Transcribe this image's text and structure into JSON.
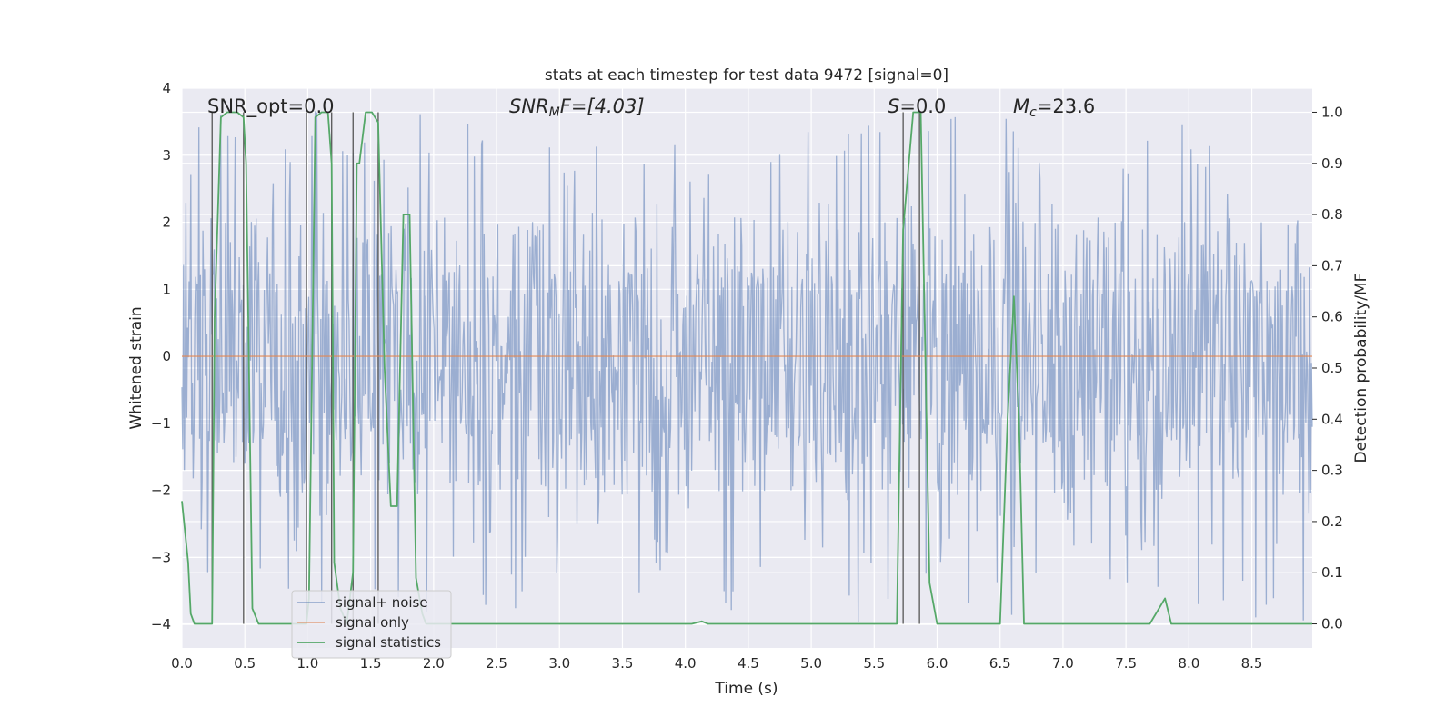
{
  "chart_data": {
    "type": "line",
    "title": "stats at each timestep for test data 9472 [signal=0]",
    "xlabel": "Time (s)",
    "ylabel_left": "Whitened strain",
    "ylabel_right": "Detection probability/MF",
    "xlim": [
      0.0,
      8.98
    ],
    "ylim_left": [
      -4.35,
      4.0
    ],
    "ylim_right": [
      -0.047,
      1.047
    ],
    "x_ticks": [
      "0.0",
      "0.5",
      "1.0",
      "1.5",
      "2.0",
      "2.5",
      "3.0",
      "3.5",
      "4.0",
      "4.5",
      "5.0",
      "5.5",
      "6.0",
      "6.5",
      "7.0",
      "7.5",
      "8.0",
      "8.5"
    ],
    "y_ticks_left": [
      "4",
      "3",
      "2",
      "1",
      "0",
      "−1",
      "−2",
      "−3",
      "−4"
    ],
    "y_ticks_right": [
      "1.0",
      "0.9",
      "0.8",
      "0.7",
      "0.6",
      "0.5",
      "0.4",
      "0.3",
      "0.2",
      "0.1",
      "0.0"
    ],
    "annotations": {
      "snr_opt": "SNR_opt=0.0",
      "snr_mf_italic": "SNR",
      "snr_mf_sub": "M",
      "snr_mf_rest": "F=[4.03]",
      "s_italic": "S",
      "s_rest": "=0.0",
      "mc_italic": "M",
      "mc_sub": "c",
      "mc_rest": "=23.6"
    },
    "series": [
      {
        "name": "signal+ noise",
        "color": "#4c72b0",
        "kind": "noise",
        "envelope_core": 1.3,
        "envelope_peak_max": 3.7,
        "envelope_peak_min": -4.0
      },
      {
        "name": "signal only",
        "color": "#dd8452",
        "x": [
          0.0,
          8.98
        ],
        "y": [
          0.0,
          0.0
        ]
      },
      {
        "name": "signal statistics",
        "color": "#55a868",
        "axis": "right",
        "x": [
          0.0,
          0.05,
          0.07,
          0.1,
          0.24,
          0.26,
          0.31,
          0.36,
          0.44,
          0.49,
          0.51,
          0.56,
          0.61,
          0.66,
          0.99,
          1.01,
          1.06,
          1.11,
          1.16,
          1.19,
          1.21,
          1.26,
          1.31,
          1.36,
          1.39,
          1.41,
          1.46,
          1.51,
          1.56,
          1.61,
          1.66,
          1.71,
          1.76,
          1.81,
          1.86,
          1.91,
          1.94,
          1.99,
          2.04,
          4.05,
          4.13,
          4.18,
          5.68,
          5.73,
          5.81,
          5.87,
          5.94,
          6.0,
          6.5,
          6.56,
          6.61,
          6.65,
          6.69,
          7.69,
          7.81,
          7.86,
          8.98
        ],
        "y": [
          0.24,
          0.12,
          0.02,
          0.0,
          0.0,
          0.6,
          0.99,
          1.0,
          1.0,
          0.99,
          0.9,
          0.03,
          0.0,
          0.0,
          0.0,
          0.05,
          0.99,
          1.0,
          1.0,
          0.9,
          0.12,
          0.03,
          0.0,
          0.1,
          0.9,
          0.9,
          1.0,
          1.0,
          0.98,
          0.5,
          0.23,
          0.23,
          0.8,
          0.8,
          0.09,
          0.02,
          0.0,
          0.0,
          0.0,
          0.0,
          0.005,
          0.0,
          0.0,
          0.77,
          1.0,
          1.0,
          0.08,
          0.0,
          0.0,
          0.4,
          0.64,
          0.4,
          0.0,
          0.0,
          0.05,
          0.0,
          0.0
        ]
      }
    ],
    "vertical_lines": [
      0.24,
      0.49,
      0.99,
      1.19,
      1.36,
      1.56,
      5.73,
      5.86
    ],
    "legend_position": "lower left"
  }
}
